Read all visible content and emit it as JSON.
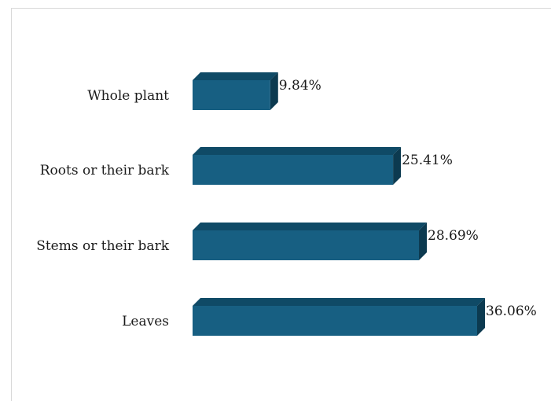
{
  "chart_data": {
    "type": "bar",
    "orientation": "horizontal",
    "style": "3d",
    "categories": [
      "Whole plant",
      "Roots or their bark",
      "Stems or their bark",
      "Leaves"
    ],
    "values": [
      9.84,
      25.41,
      28.69,
      36.06
    ],
    "value_labels": [
      "9.84%",
      "25.41%",
      "28.69%",
      "36.06%"
    ],
    "unit": "%",
    "title": "",
    "xlabel": "",
    "ylabel": "",
    "xlim": [
      0,
      36.06
    ],
    "grid": false,
    "legend": "none",
    "colors": {
      "bar_front": "#175f82",
      "bar_top": "#0f4a66",
      "bar_side": "#0c3a50"
    }
  }
}
